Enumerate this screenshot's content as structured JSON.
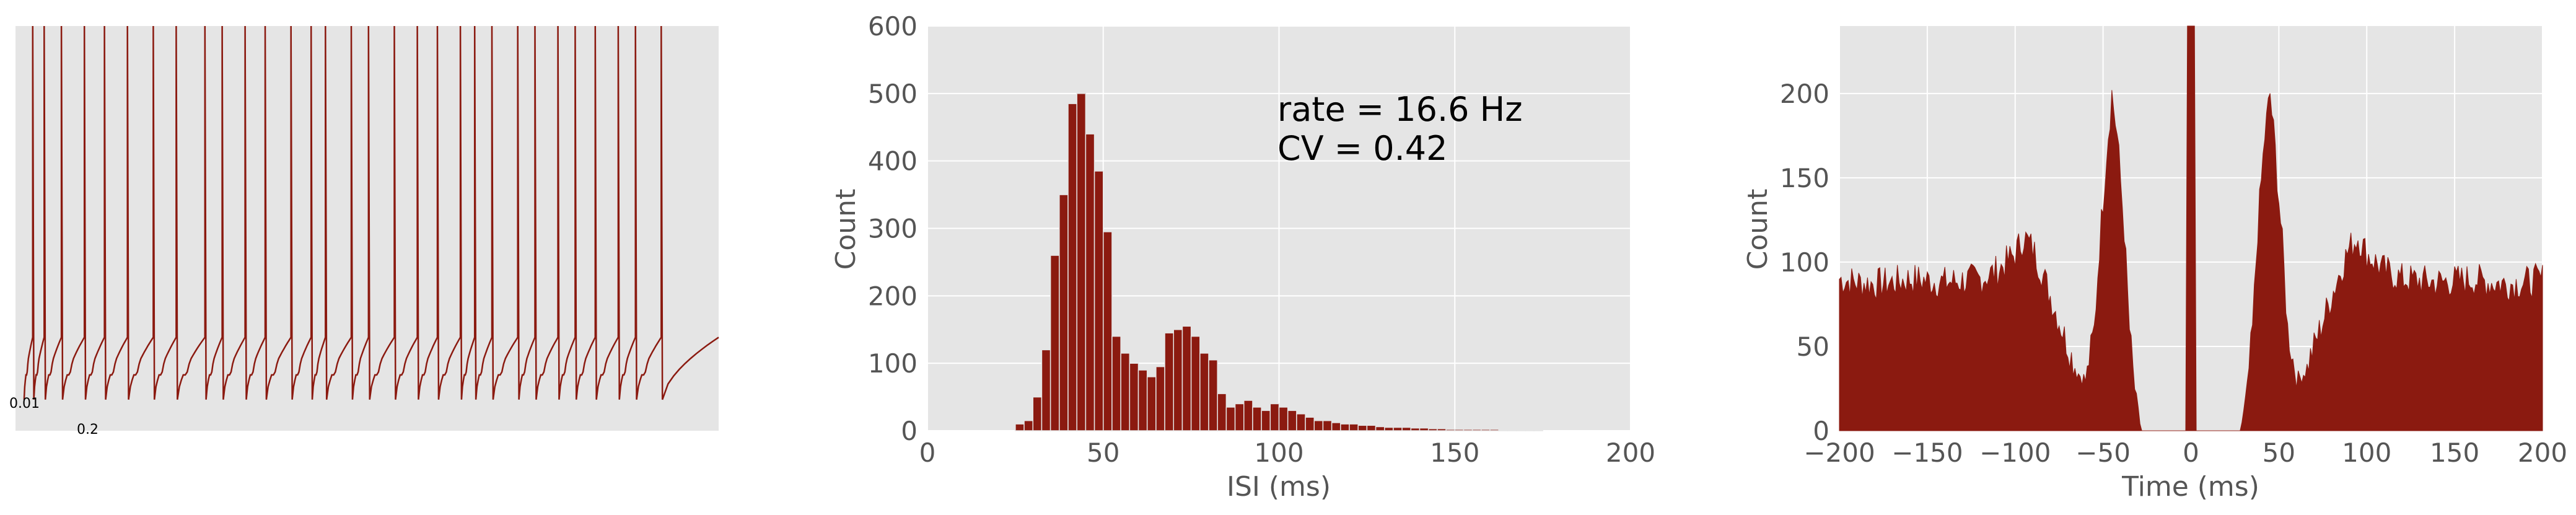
{
  "chart_data": [
    {
      "type": "line",
      "scalebar": {
        "v_label": "0.01",
        "h_label": "0.2"
      },
      "trace": {
        "n_spikes": 31,
        "spike_times": [
          0.06,
          0.1,
          0.16,
          0.24,
          0.31,
          0.39,
          0.48,
          0.56,
          0.66,
          0.72,
          0.8,
          0.87,
          0.96,
          1.03,
          1.08,
          1.17,
          1.23,
          1.32,
          1.4,
          1.47,
          1.55,
          1.6,
          1.66,
          1.75,
          1.81,
          1.89,
          1.95,
          2.02,
          2.1,
          2.16,
          2.25
        ],
        "baseline": 0.0,
        "trough": -0.01,
        "peak": 0.05,
        "xlim": [
          0,
          2.45
        ],
        "ylim": [
          -0.015,
          0.05
        ]
      },
      "color": "#8b1a10"
    },
    {
      "type": "bar",
      "xlabel": "ISI (ms)",
      "ylabel": "Count",
      "xlim": [
        0,
        200
      ],
      "ylim": [
        0,
        600
      ],
      "xticks": [
        0,
        50,
        100,
        150,
        200
      ],
      "yticks": [
        0,
        100,
        200,
        300,
        400,
        500,
        600
      ],
      "bin_width": 2.5,
      "bin_start": 25,
      "values": [
        10,
        15,
        50,
        120,
        260,
        350,
        485,
        500,
        440,
        385,
        295,
        140,
        115,
        100,
        90,
        80,
        95,
        145,
        150,
        155,
        140,
        115,
        105,
        55,
        35,
        40,
        45,
        35,
        30,
        40,
        35,
        30,
        25,
        20,
        15,
        15,
        12,
        10,
        10,
        8,
        8,
        6,
        5,
        5,
        5,
        4,
        4,
        3,
        3,
        2,
        2,
        2,
        2,
        2,
        2,
        1,
        1,
        1,
        1,
        1
      ],
      "annotation": [
        "rate = 16.6 Hz",
        "CV = 0.42"
      ],
      "color": "#8b1a10"
    },
    {
      "type": "area",
      "xlabel": "Time (ms)",
      "ylabel": "Count",
      "xlim": [
        -200,
        200
      ],
      "ylim": [
        0,
        240
      ],
      "xticks": [
        -200,
        -150,
        -100,
        -50,
        0,
        50,
        100,
        150,
        200
      ],
      "xtick_labels": [
        "−200",
        "−150",
        "−100",
        "−50",
        "0",
        "50",
        "100",
        "150",
        "200"
      ],
      "yticks": [
        0,
        50,
        100,
        150,
        200
      ],
      "profile": [
        [
          -200,
          90
        ],
        [
          -190,
          88
        ],
        [
          -180,
          87
        ],
        [
          -170,
          88
        ],
        [
          -160,
          90
        ],
        [
          -150,
          89
        ],
        [
          -140,
          88
        ],
        [
          -130,
          89
        ],
        [
          -120,
          90
        ],
        [
          -110,
          95
        ],
        [
          -100,
          105
        ],
        [
          -95,
          115
        ],
        [
          -90,
          108
        ],
        [
          -85,
          95
        ],
        [
          -80,
          80
        ],
        [
          -75,
          65
        ],
        [
          -70,
          50
        ],
        [
          -65,
          35
        ],
        [
          -60,
          30
        ],
        [
          -55,
          60
        ],
        [
          -52,
          110
        ],
        [
          -48,
          165
        ],
        [
          -45,
          200
        ],
        [
          -42,
          175
        ],
        [
          -38,
          120
        ],
        [
          -35,
          60
        ],
        [
          -32,
          25
        ],
        [
          -30,
          10
        ],
        [
          -28,
          0
        ],
        [
          -18,
          0
        ],
        [
          -2,
          0
        ],
        [
          -2,
          240
        ],
        [
          2,
          240
        ],
        [
          2,
          0
        ],
        [
          18,
          0
        ],
        [
          28,
          0
        ],
        [
          30,
          10
        ],
        [
          32,
          25
        ],
        [
          35,
          60
        ],
        [
          38,
          120
        ],
        [
          42,
          175
        ],
        [
          45,
          200
        ],
        [
          48,
          165
        ],
        [
          52,
          110
        ],
        [
          55,
          60
        ],
        [
          60,
          30
        ],
        [
          65,
          35
        ],
        [
          70,
          50
        ],
        [
          75,
          65
        ],
        [
          80,
          80
        ],
        [
          85,
          95
        ],
        [
          90,
          108
        ],
        [
          95,
          115
        ],
        [
          100,
          105
        ],
        [
          110,
          95
        ],
        [
          120,
          90
        ],
        [
          130,
          89
        ],
        [
          140,
          88
        ],
        [
          150,
          89
        ],
        [
          160,
          90
        ],
        [
          170,
          88
        ],
        [
          180,
          87
        ],
        [
          190,
          88
        ],
        [
          200,
          90
        ]
      ],
      "noise_amplitude": 10,
      "color": "#8b1a10"
    }
  ]
}
